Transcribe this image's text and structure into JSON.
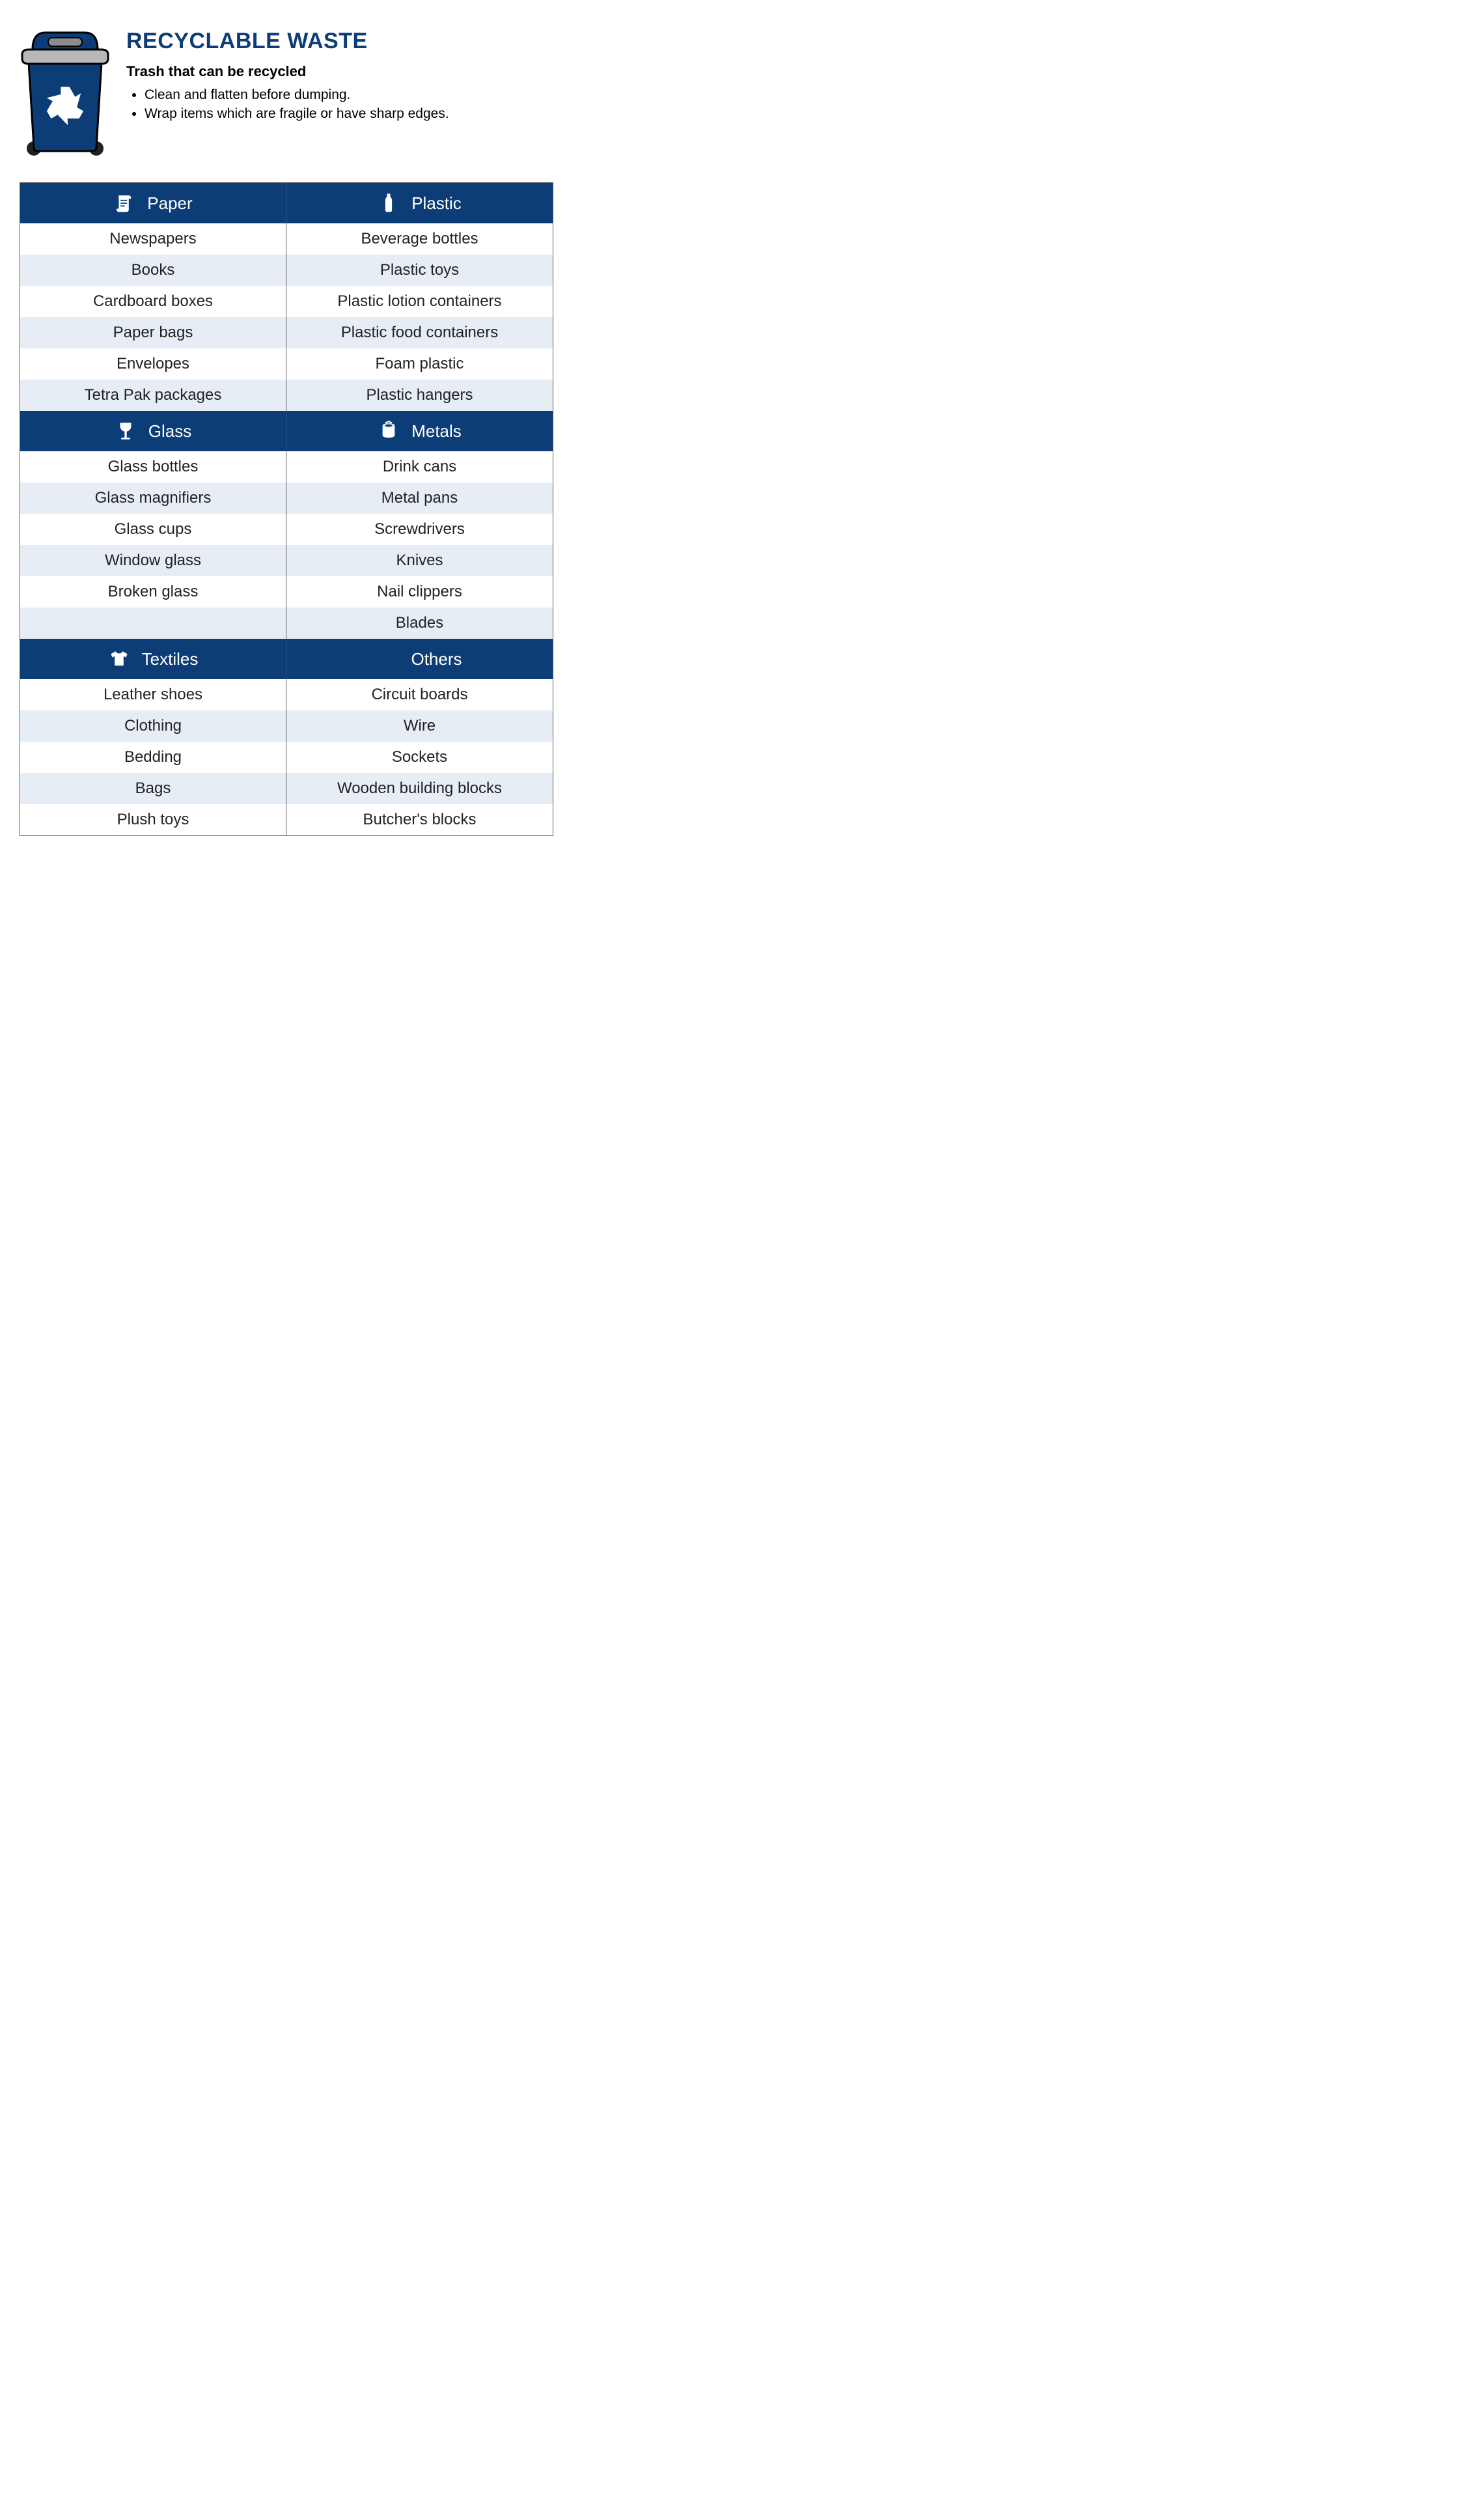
{
  "header": {
    "title": "RECYCLABLE WASTE",
    "title_color": "#0d3d76",
    "subtitle": "Trash that can be recycled",
    "bullets": [
      "Clean and flatten before dumping.",
      "Wrap items which are fragile or have sharp edges."
    ]
  },
  "bin": {
    "body_color": "#0d3d76",
    "lid_color": "#b8b8b8",
    "handle_color": "#8b8b8b",
    "wheel_color": "#212121",
    "symbol_color": "#ffffff",
    "outline_color": "#000000"
  },
  "table": {
    "header_bg": "#0d3d76",
    "header_text_color": "#ffffff",
    "alt_row_bg": "#e6edf4",
    "row_bg": "#ffffff",
    "border_color": "#5a5a5a",
    "item_text_color": "#222222",
    "sections": [
      {
        "left": {
          "label": "Paper",
          "icon": "scroll",
          "items": [
            "Newspapers",
            "Books",
            "Cardboard boxes",
            "Paper bags",
            "Envelopes",
            "Tetra Pak packages"
          ]
        },
        "right": {
          "label": "Plastic",
          "icon": "bottle",
          "items": [
            "Beverage bottles",
            "Plastic toys",
            "Plastic lotion containers",
            "Plastic food containers",
            "Foam plastic",
            "Plastic hangers"
          ]
        }
      },
      {
        "left": {
          "label": "Glass",
          "icon": "wineglass",
          "items": [
            "Glass bottles",
            "Glass magnifiers",
            "Glass cups",
            "Window glass",
            "Broken glass",
            ""
          ]
        },
        "right": {
          "label": "Metals",
          "icon": "can",
          "items": [
            "Drink cans",
            "Metal pans",
            "Screwdrivers",
            "Knives",
            "Nail clippers",
            "Blades"
          ]
        }
      },
      {
        "left": {
          "label": "Textiles",
          "icon": "shirt",
          "items": [
            "Leather shoes",
            "Clothing",
            "Bedding",
            "Bags",
            "Plush toys"
          ]
        },
        "right": {
          "label": "Others",
          "icon": "none",
          "items": [
            "Circuit boards",
            "Wire",
            "Sockets",
            "Wooden building blocks",
            "Butcher's blocks"
          ]
        }
      }
    ]
  }
}
